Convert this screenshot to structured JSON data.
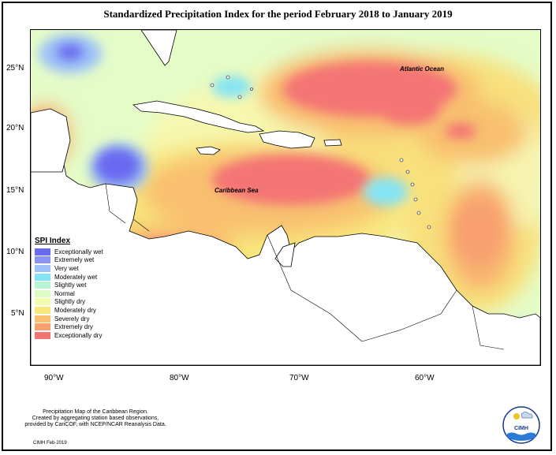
{
  "title": "Standardized Precipitation Index for the period February 2018 to January 2019",
  "axes": {
    "y_ticks": [
      "25°N",
      "20°N",
      "15°N",
      "10°N",
      "5°N"
    ],
    "x_ticks": [
      "90°W",
      "80°W",
      "70°W",
      "60°W"
    ]
  },
  "place_labels": {
    "atlantic": "Atlantic Ocean",
    "caribbean": "Caribbean Sea"
  },
  "legend": {
    "title": "SPI Index",
    "items": [
      {
        "label": "Exceptionally wet",
        "color": "#6a6af0"
      },
      {
        "label": "Extremely wet",
        "color": "#8a94f4"
      },
      {
        "label": "Very wet",
        "color": "#9ec2f8"
      },
      {
        "label": "Moderately wet",
        "color": "#84e4f4"
      },
      {
        "label": "Slightly wet",
        "color": "#b8f4d4"
      },
      {
        "label": "Normal",
        "color": "#dcfcc4"
      },
      {
        "label": "Slightly dry",
        "color": "#f4fcb0"
      },
      {
        "label": "Moderately dry",
        "color": "#f8e87c"
      },
      {
        "label": "Severely dry",
        "color": "#f8c070"
      },
      {
        "label": "Extremely dry",
        "color": "#f8a070"
      },
      {
        "label": "Exceptionally dry",
        "color": "#f47474"
      }
    ]
  },
  "footer": {
    "line1": "Precipitation Map of the Caribbean Region.",
    "line2": "Created by aggregating station based observations,",
    "line3": "provided by CariCOF, with NCEP/NCAR Reanalysis Data.",
    "date": "CIMH Feb-2019"
  },
  "logo": {
    "text": "CIMH"
  }
}
